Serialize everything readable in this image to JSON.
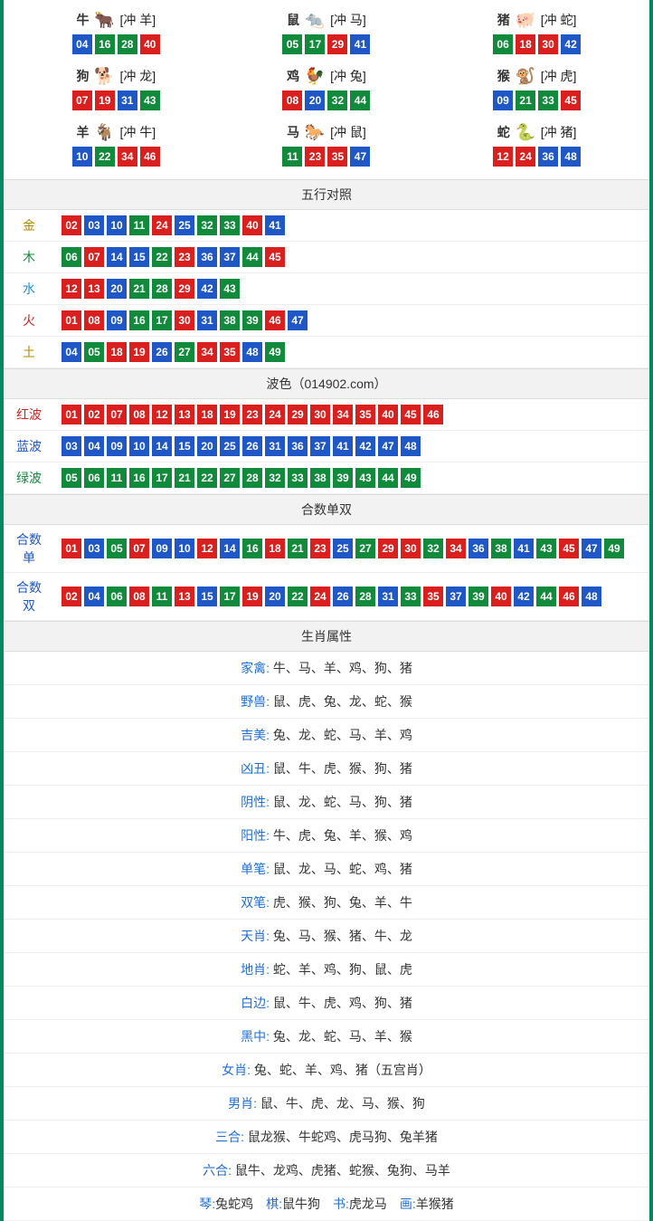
{
  "colors": {
    "red": "#d9201f",
    "blue": "#1f57c7",
    "green": "#118b3b",
    "border": "#008860",
    "section_bg": "#f2f2f2"
  },
  "zodiac": [
    {
      "name": "牛",
      "emoji": "🐂",
      "conflict": "[冲 羊]",
      "balls": [
        {
          "n": "04",
          "c": "blue"
        },
        {
          "n": "16",
          "c": "green"
        },
        {
          "n": "28",
          "c": "green"
        },
        {
          "n": "40",
          "c": "red"
        }
      ]
    },
    {
      "name": "鼠",
      "emoji": "🐀",
      "conflict": "[冲 马]",
      "balls": [
        {
          "n": "05",
          "c": "green"
        },
        {
          "n": "17",
          "c": "green"
        },
        {
          "n": "29",
          "c": "red"
        },
        {
          "n": "41",
          "c": "blue"
        }
      ]
    },
    {
      "name": "猪",
      "emoji": "🐖",
      "conflict": "[冲 蛇]",
      "balls": [
        {
          "n": "06",
          "c": "green"
        },
        {
          "n": "18",
          "c": "red"
        },
        {
          "n": "30",
          "c": "red"
        },
        {
          "n": "42",
          "c": "blue"
        }
      ]
    },
    {
      "name": "狗",
      "emoji": "🐕",
      "conflict": "[冲 龙]",
      "balls": [
        {
          "n": "07",
          "c": "red"
        },
        {
          "n": "19",
          "c": "red"
        },
        {
          "n": "31",
          "c": "blue"
        },
        {
          "n": "43",
          "c": "green"
        }
      ]
    },
    {
      "name": "鸡",
      "emoji": "🐓",
      "conflict": "[冲 兔]",
      "balls": [
        {
          "n": "08",
          "c": "red"
        },
        {
          "n": "20",
          "c": "blue"
        },
        {
          "n": "32",
          "c": "green"
        },
        {
          "n": "44",
          "c": "green"
        }
      ]
    },
    {
      "name": "猴",
      "emoji": "🐒",
      "conflict": "[冲 虎]",
      "balls": [
        {
          "n": "09",
          "c": "blue"
        },
        {
          "n": "21",
          "c": "green"
        },
        {
          "n": "33",
          "c": "green"
        },
        {
          "n": "45",
          "c": "red"
        }
      ]
    },
    {
      "name": "羊",
      "emoji": "🐐",
      "conflict": "[冲 牛]",
      "balls": [
        {
          "n": "10",
          "c": "blue"
        },
        {
          "n": "22",
          "c": "green"
        },
        {
          "n": "34",
          "c": "red"
        },
        {
          "n": "46",
          "c": "red"
        }
      ]
    },
    {
      "name": "马",
      "emoji": "🐎",
      "conflict": "[冲 鼠]",
      "balls": [
        {
          "n": "11",
          "c": "green"
        },
        {
          "n": "23",
          "c": "red"
        },
        {
          "n": "35",
          "c": "red"
        },
        {
          "n": "47",
          "c": "blue"
        }
      ]
    },
    {
      "name": "蛇",
      "emoji": "🐍",
      "conflict": "[冲 猪]",
      "balls": [
        {
          "n": "12",
          "c": "red"
        },
        {
          "n": "24",
          "c": "red"
        },
        {
          "n": "36",
          "c": "blue"
        },
        {
          "n": "48",
          "c": "blue"
        }
      ]
    }
  ],
  "sections": {
    "wuxing": "五行对照",
    "bose": "波色（014902.com）",
    "heshu": "合数单双",
    "shuxing": "生肖属性"
  },
  "wuxing": [
    {
      "key": "金",
      "cls": "label-gold",
      "balls": [
        {
          "n": "02",
          "c": "red"
        },
        {
          "n": "03",
          "c": "blue"
        },
        {
          "n": "10",
          "c": "blue"
        },
        {
          "n": "11",
          "c": "green"
        },
        {
          "n": "24",
          "c": "red"
        },
        {
          "n": "25",
          "c": "blue"
        },
        {
          "n": "32",
          "c": "green"
        },
        {
          "n": "33",
          "c": "green"
        },
        {
          "n": "40",
          "c": "red"
        },
        {
          "n": "41",
          "c": "blue"
        }
      ]
    },
    {
      "key": "木",
      "cls": "label-wood",
      "balls": [
        {
          "n": "06",
          "c": "green"
        },
        {
          "n": "07",
          "c": "red"
        },
        {
          "n": "14",
          "c": "blue"
        },
        {
          "n": "15",
          "c": "blue"
        },
        {
          "n": "22",
          "c": "green"
        },
        {
          "n": "23",
          "c": "red"
        },
        {
          "n": "36",
          "c": "blue"
        },
        {
          "n": "37",
          "c": "blue"
        },
        {
          "n": "44",
          "c": "green"
        },
        {
          "n": "45",
          "c": "red"
        }
      ]
    },
    {
      "key": "水",
      "cls": "label-water",
      "balls": [
        {
          "n": "12",
          "c": "red"
        },
        {
          "n": "13",
          "c": "red"
        },
        {
          "n": "20",
          "c": "blue"
        },
        {
          "n": "21",
          "c": "green"
        },
        {
          "n": "28",
          "c": "green"
        },
        {
          "n": "29",
          "c": "red"
        },
        {
          "n": "42",
          "c": "blue"
        },
        {
          "n": "43",
          "c": "green"
        }
      ]
    },
    {
      "key": "火",
      "cls": "label-fire",
      "balls": [
        {
          "n": "01",
          "c": "red"
        },
        {
          "n": "08",
          "c": "red"
        },
        {
          "n": "09",
          "c": "blue"
        },
        {
          "n": "16",
          "c": "green"
        },
        {
          "n": "17",
          "c": "green"
        },
        {
          "n": "30",
          "c": "red"
        },
        {
          "n": "31",
          "c": "blue"
        },
        {
          "n": "38",
          "c": "green"
        },
        {
          "n": "39",
          "c": "green"
        },
        {
          "n": "46",
          "c": "red"
        },
        {
          "n": "47",
          "c": "blue"
        }
      ]
    },
    {
      "key": "土",
      "cls": "label-earth",
      "balls": [
        {
          "n": "04",
          "c": "blue"
        },
        {
          "n": "05",
          "c": "green"
        },
        {
          "n": "18",
          "c": "red"
        },
        {
          "n": "19",
          "c": "red"
        },
        {
          "n": "26",
          "c": "blue"
        },
        {
          "n": "27",
          "c": "green"
        },
        {
          "n": "34",
          "c": "red"
        },
        {
          "n": "35",
          "c": "red"
        },
        {
          "n": "48",
          "c": "blue"
        },
        {
          "n": "49",
          "c": "green"
        }
      ]
    }
  ],
  "bose": [
    {
      "key": "红波",
      "cls": "label-red",
      "balls": [
        {
          "n": "01",
          "c": "red"
        },
        {
          "n": "02",
          "c": "red"
        },
        {
          "n": "07",
          "c": "red"
        },
        {
          "n": "08",
          "c": "red"
        },
        {
          "n": "12",
          "c": "red"
        },
        {
          "n": "13",
          "c": "red"
        },
        {
          "n": "18",
          "c": "red"
        },
        {
          "n": "19",
          "c": "red"
        },
        {
          "n": "23",
          "c": "red"
        },
        {
          "n": "24",
          "c": "red"
        },
        {
          "n": "29",
          "c": "red"
        },
        {
          "n": "30",
          "c": "red"
        },
        {
          "n": "34",
          "c": "red"
        },
        {
          "n": "35",
          "c": "red"
        },
        {
          "n": "40",
          "c": "red"
        },
        {
          "n": "45",
          "c": "red"
        },
        {
          "n": "46",
          "c": "red"
        }
      ]
    },
    {
      "key": "蓝波",
      "cls": "label-blue",
      "balls": [
        {
          "n": "03",
          "c": "blue"
        },
        {
          "n": "04",
          "c": "blue"
        },
        {
          "n": "09",
          "c": "blue"
        },
        {
          "n": "10",
          "c": "blue"
        },
        {
          "n": "14",
          "c": "blue"
        },
        {
          "n": "15",
          "c": "blue"
        },
        {
          "n": "20",
          "c": "blue"
        },
        {
          "n": "25",
          "c": "blue"
        },
        {
          "n": "26",
          "c": "blue"
        },
        {
          "n": "31",
          "c": "blue"
        },
        {
          "n": "36",
          "c": "blue"
        },
        {
          "n": "37",
          "c": "blue"
        },
        {
          "n": "41",
          "c": "blue"
        },
        {
          "n": "42",
          "c": "blue"
        },
        {
          "n": "47",
          "c": "blue"
        },
        {
          "n": "48",
          "c": "blue"
        }
      ]
    },
    {
      "key": "绿波",
      "cls": "label-green",
      "balls": [
        {
          "n": "05",
          "c": "green"
        },
        {
          "n": "06",
          "c": "green"
        },
        {
          "n": "11",
          "c": "green"
        },
        {
          "n": "16",
          "c": "green"
        },
        {
          "n": "17",
          "c": "green"
        },
        {
          "n": "21",
          "c": "green"
        },
        {
          "n": "22",
          "c": "green"
        },
        {
          "n": "27",
          "c": "green"
        },
        {
          "n": "28",
          "c": "green"
        },
        {
          "n": "32",
          "c": "green"
        },
        {
          "n": "33",
          "c": "green"
        },
        {
          "n": "38",
          "c": "green"
        },
        {
          "n": "39",
          "c": "green"
        },
        {
          "n": "43",
          "c": "green"
        },
        {
          "n": "44",
          "c": "green"
        },
        {
          "n": "49",
          "c": "green"
        }
      ]
    }
  ],
  "heshu": [
    {
      "key": "合数单",
      "cls": "label-odd",
      "balls": [
        {
          "n": "01",
          "c": "red"
        },
        {
          "n": "03",
          "c": "blue"
        },
        {
          "n": "05",
          "c": "green"
        },
        {
          "n": "07",
          "c": "red"
        },
        {
          "n": "09",
          "c": "blue"
        },
        {
          "n": "10",
          "c": "blue"
        },
        {
          "n": "12",
          "c": "red"
        },
        {
          "n": "14",
          "c": "blue"
        },
        {
          "n": "16",
          "c": "green"
        },
        {
          "n": "18",
          "c": "red"
        },
        {
          "n": "21",
          "c": "green"
        },
        {
          "n": "23",
          "c": "red"
        },
        {
          "n": "25",
          "c": "blue"
        },
        {
          "n": "27",
          "c": "green"
        },
        {
          "n": "29",
          "c": "red"
        },
        {
          "n": "30",
          "c": "red"
        },
        {
          "n": "32",
          "c": "green"
        },
        {
          "n": "34",
          "c": "red"
        },
        {
          "n": "36",
          "c": "blue"
        },
        {
          "n": "38",
          "c": "green"
        },
        {
          "n": "41",
          "c": "blue"
        },
        {
          "n": "43",
          "c": "green"
        },
        {
          "n": "45",
          "c": "red"
        },
        {
          "n": "47",
          "c": "blue"
        },
        {
          "n": "49",
          "c": "green"
        }
      ]
    },
    {
      "key": "合数双",
      "cls": "label-even",
      "balls": [
        {
          "n": "02",
          "c": "red"
        },
        {
          "n": "04",
          "c": "blue"
        },
        {
          "n": "06",
          "c": "green"
        },
        {
          "n": "08",
          "c": "red"
        },
        {
          "n": "11",
          "c": "green"
        },
        {
          "n": "13",
          "c": "red"
        },
        {
          "n": "15",
          "c": "blue"
        },
        {
          "n": "17",
          "c": "green"
        },
        {
          "n": "19",
          "c": "red"
        },
        {
          "n": "20",
          "c": "blue"
        },
        {
          "n": "22",
          "c": "green"
        },
        {
          "n": "24",
          "c": "red"
        },
        {
          "n": "26",
          "c": "blue"
        },
        {
          "n": "28",
          "c": "green"
        },
        {
          "n": "31",
          "c": "blue"
        },
        {
          "n": "33",
          "c": "green"
        },
        {
          "n": "35",
          "c": "red"
        },
        {
          "n": "37",
          "c": "blue"
        },
        {
          "n": "39",
          "c": "green"
        },
        {
          "n": "40",
          "c": "red"
        },
        {
          "n": "42",
          "c": "blue"
        },
        {
          "n": "44",
          "c": "green"
        },
        {
          "n": "46",
          "c": "red"
        },
        {
          "n": "48",
          "c": "blue"
        }
      ]
    }
  ],
  "attrs": [
    {
      "label": "家禽:",
      "value": " 牛、马、羊、鸡、狗、猪"
    },
    {
      "label": "野兽:",
      "value": " 鼠、虎、兔、龙、蛇、猴"
    },
    {
      "label": "吉美:",
      "value": " 兔、龙、蛇、马、羊、鸡"
    },
    {
      "label": "凶丑:",
      "value": " 鼠、牛、虎、猴、狗、猪"
    },
    {
      "label": "阴性:",
      "value": " 鼠、龙、蛇、马、狗、猪"
    },
    {
      "label": "阳性:",
      "value": " 牛、虎、兔、羊、猴、鸡"
    },
    {
      "label": "单笔:",
      "value": " 鼠、龙、马、蛇、鸡、猪"
    },
    {
      "label": "双笔:",
      "value": " 虎、猴、狗、兔、羊、牛"
    },
    {
      "label": "天肖:",
      "value": " 兔、马、猴、猪、牛、龙"
    },
    {
      "label": "地肖:",
      "value": " 蛇、羊、鸡、狗、鼠、虎"
    },
    {
      "label": "白边:",
      "value": " 鼠、牛、虎、鸡、狗、猪"
    },
    {
      "label": "黑中:",
      "value": " 兔、龙、蛇、马、羊、猴"
    },
    {
      "label": "女肖:",
      "value": " 兔、蛇、羊、鸡、猪（五宫肖）"
    },
    {
      "label": "男肖:",
      "value": " 鼠、牛、虎、龙、马、猴、狗"
    },
    {
      "label": "三合:",
      "value": " 鼠龙猴、牛蛇鸡、虎马狗、兔羊猪"
    },
    {
      "label": "六合:",
      "value": " 鼠牛、龙鸡、虎猪、蛇猴、兔狗、马羊"
    }
  ],
  "multi": [
    {
      "k": "琴:",
      "v": "兔蛇鸡"
    },
    {
      "k": "棋:",
      "v": "鼠牛狗"
    },
    {
      "k": "书:",
      "v": "虎龙马"
    },
    {
      "k": "画:",
      "v": "羊猴猪"
    }
  ]
}
